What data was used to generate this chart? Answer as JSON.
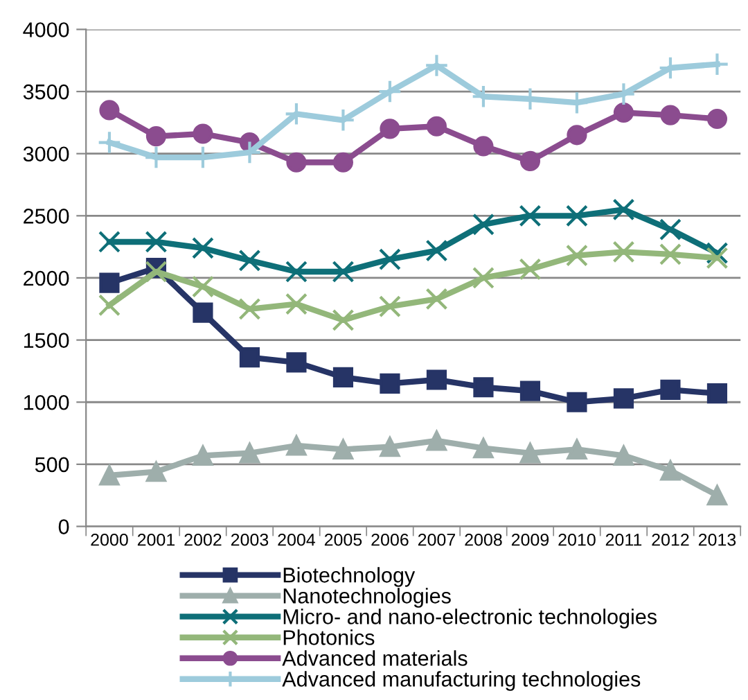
{
  "chart_data": {
    "type": "line",
    "categories": [
      "2000",
      "2001",
      "2002",
      "2003",
      "2004",
      "2005",
      "2006",
      "2007",
      "2008",
      "2009",
      "2010",
      "2011",
      "2012",
      "2013"
    ],
    "ylim": [
      0,
      4000
    ],
    "yticks": [
      0,
      500,
      1000,
      1500,
      2000,
      2500,
      3000,
      3500,
      4000
    ],
    "grid": "y",
    "legend": "bottom",
    "line_style": "solid",
    "series": [
      {
        "name": "Biotechnology",
        "color": "#263466",
        "marker": "square",
        "values": [
          1960,
          2080,
          1720,
          1360,
          1320,
          1200,
          1150,
          1180,
          1120,
          1090,
          1000,
          1030,
          1100,
          1070
        ]
      },
      {
        "name": "Nanotechnologies",
        "color": "#9eaeab",
        "marker": "triangle",
        "values": [
          410,
          440,
          570,
          590,
          650,
          620,
          640,
          690,
          630,
          590,
          620,
          570,
          450,
          250
        ]
      },
      {
        "name": "Micro- and nano-electronic technologies",
        "color": "#0e6f78",
        "marker": "cross",
        "values": [
          2290,
          2290,
          2240,
          2140,
          2050,
          2050,
          2150,
          2220,
          2430,
          2500,
          2500,
          2550,
          2390,
          2200
        ]
      },
      {
        "name": "Photonics",
        "color": "#93b77a",
        "marker": "cross",
        "values": [
          1780,
          2050,
          1930,
          1750,
          1790,
          1660,
          1770,
          1830,
          2000,
          2070,
          2180,
          2210,
          2190,
          2160
        ]
      },
      {
        "name": "Advanced materials",
        "color": "#8b4c8f",
        "marker": "circle",
        "values": [
          3350,
          3140,
          3160,
          3090,
          2930,
          2930,
          3200,
          3220,
          3060,
          2940,
          3150,
          3330,
          3310,
          3280
        ]
      },
      {
        "name": "Advanced manufacturing technologies",
        "color": "#9dcbdc",
        "marker": "plus",
        "values": [
          3090,
          2970,
          2970,
          3010,
          3320,
          3270,
          3500,
          3710,
          3460,
          3440,
          3410,
          3480,
          3690,
          3720
        ]
      }
    ]
  }
}
